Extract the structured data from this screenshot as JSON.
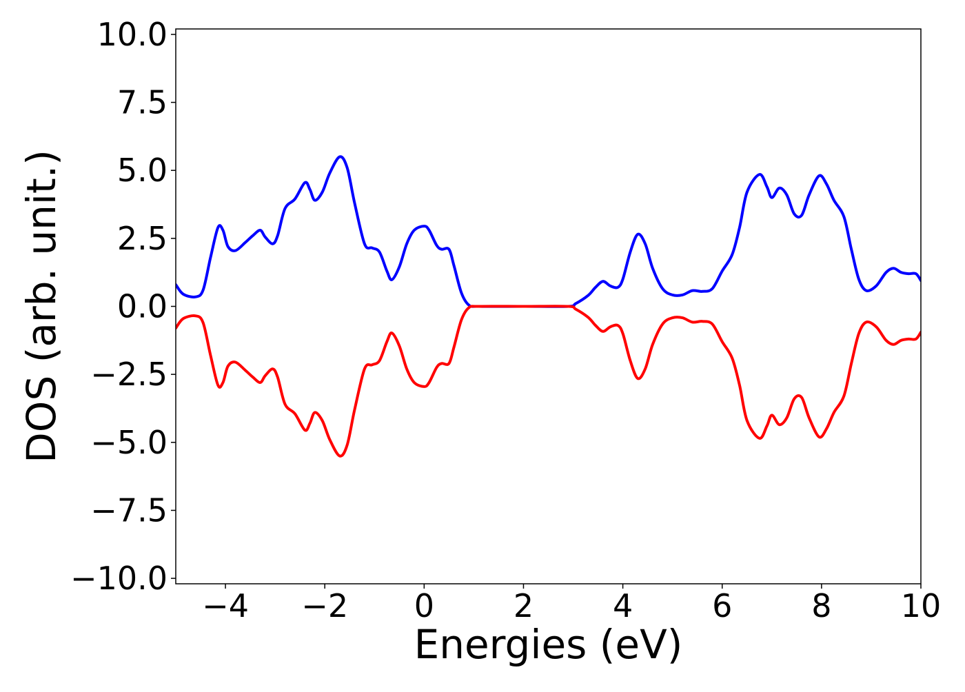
{
  "chart_data": {
    "type": "line",
    "xlabel": "Energies (eV)",
    "ylabel": "DOS (arb. unit.)",
    "xlim": [
      -5,
      10
    ],
    "ylim": [
      -10.2,
      10.2
    ],
    "xticks": [
      -4,
      -2,
      0,
      2,
      4,
      6,
      8,
      10
    ],
    "xtick_labels": [
      "−4",
      "−2",
      "0",
      "2",
      "4",
      "6",
      "8",
      "10"
    ],
    "yticks": [
      10.0,
      7.5,
      5.0,
      2.5,
      0.0,
      -2.5,
      -5.0,
      -7.5,
      -10.0
    ],
    "ytick_labels": [
      "10.0",
      "7.5",
      "5.0",
      "2.5",
      "0.0",
      "−2.5",
      "−5.0",
      "−7.5",
      "−10.0"
    ],
    "grid": false,
    "legend": "none",
    "series": [
      {
        "color": "#0000ff",
        "points": [
          [
            -5.0,
            0.8
          ],
          [
            -4.85,
            0.45
          ],
          [
            -4.6,
            0.35
          ],
          [
            -4.45,
            0.6
          ],
          [
            -4.3,
            1.8
          ],
          [
            -4.15,
            2.9
          ],
          [
            -4.05,
            2.8
          ],
          [
            -3.95,
            2.2
          ],
          [
            -3.8,
            2.05
          ],
          [
            -3.6,
            2.35
          ],
          [
            -3.45,
            2.6
          ],
          [
            -3.3,
            2.8
          ],
          [
            -3.2,
            2.55
          ],
          [
            -3.05,
            2.3
          ],
          [
            -2.95,
            2.6
          ],
          [
            -2.8,
            3.6
          ],
          [
            -2.6,
            3.95
          ],
          [
            -2.4,
            4.55
          ],
          [
            -2.3,
            4.3
          ],
          [
            -2.2,
            3.9
          ],
          [
            -2.05,
            4.2
          ],
          [
            -1.9,
            4.9
          ],
          [
            -1.7,
            5.5
          ],
          [
            -1.55,
            5.1
          ],
          [
            -1.4,
            3.8
          ],
          [
            -1.2,
            2.3
          ],
          [
            -1.05,
            2.15
          ],
          [
            -0.9,
            2.0
          ],
          [
            -0.75,
            1.3
          ],
          [
            -0.65,
            0.98
          ],
          [
            -0.5,
            1.45
          ],
          [
            -0.35,
            2.3
          ],
          [
            -0.2,
            2.8
          ],
          [
            0.0,
            2.95
          ],
          [
            0.1,
            2.8
          ],
          [
            0.25,
            2.25
          ],
          [
            0.35,
            2.1
          ],
          [
            0.5,
            2.1
          ],
          [
            0.6,
            1.5
          ],
          [
            0.75,
            0.5
          ],
          [
            0.9,
            0.05
          ],
          [
            1.1,
            0.0
          ],
          [
            2.0,
            0.0
          ],
          [
            2.9,
            0.0
          ],
          [
            3.05,
            0.1
          ],
          [
            3.3,
            0.4
          ],
          [
            3.45,
            0.7
          ],
          [
            3.6,
            0.92
          ],
          [
            3.75,
            0.75
          ],
          [
            3.9,
            0.7
          ],
          [
            4.0,
            1.0
          ],
          [
            4.15,
            2.0
          ],
          [
            4.3,
            2.65
          ],
          [
            4.45,
            2.3
          ],
          [
            4.6,
            1.4
          ],
          [
            4.8,
            0.65
          ],
          [
            5.0,
            0.42
          ],
          [
            5.2,
            0.42
          ],
          [
            5.4,
            0.58
          ],
          [
            5.6,
            0.55
          ],
          [
            5.8,
            0.65
          ],
          [
            6.0,
            1.3
          ],
          [
            6.2,
            1.9
          ],
          [
            6.35,
            2.9
          ],
          [
            6.5,
            4.2
          ],
          [
            6.75,
            4.85
          ],
          [
            6.9,
            4.4
          ],
          [
            7.0,
            4.0
          ],
          [
            7.15,
            4.35
          ],
          [
            7.3,
            4.1
          ],
          [
            7.45,
            3.4
          ],
          [
            7.6,
            3.35
          ],
          [
            7.75,
            4.1
          ],
          [
            7.95,
            4.8
          ],
          [
            8.1,
            4.5
          ],
          [
            8.25,
            3.9
          ],
          [
            8.45,
            3.3
          ],
          [
            8.6,
            2.1
          ],
          [
            8.75,
            1.0
          ],
          [
            8.9,
            0.58
          ],
          [
            9.1,
            0.75
          ],
          [
            9.3,
            1.25
          ],
          [
            9.45,
            1.4
          ],
          [
            9.6,
            1.25
          ],
          [
            9.75,
            1.2
          ],
          [
            9.9,
            1.2
          ],
          [
            10.0,
            0.95
          ]
        ]
      },
      {
        "color": "#ff0000",
        "points": [
          [
            -5.0,
            -0.8
          ],
          [
            -4.85,
            -0.45
          ],
          [
            -4.6,
            -0.35
          ],
          [
            -4.45,
            -0.6
          ],
          [
            -4.3,
            -1.8
          ],
          [
            -4.15,
            -2.9
          ],
          [
            -4.05,
            -2.8
          ],
          [
            -3.95,
            -2.2
          ],
          [
            -3.8,
            -2.05
          ],
          [
            -3.6,
            -2.35
          ],
          [
            -3.45,
            -2.6
          ],
          [
            -3.3,
            -2.8
          ],
          [
            -3.2,
            -2.55
          ],
          [
            -3.05,
            -2.3
          ],
          [
            -2.95,
            -2.6
          ],
          [
            -2.8,
            -3.6
          ],
          [
            -2.6,
            -3.95
          ],
          [
            -2.4,
            -4.55
          ],
          [
            -2.3,
            -4.3
          ],
          [
            -2.2,
            -3.9
          ],
          [
            -2.05,
            -4.2
          ],
          [
            -1.9,
            -4.9
          ],
          [
            -1.7,
            -5.5
          ],
          [
            -1.55,
            -5.1
          ],
          [
            -1.4,
            -3.8
          ],
          [
            -1.2,
            -2.3
          ],
          [
            -1.05,
            -2.15
          ],
          [
            -0.9,
            -2.0
          ],
          [
            -0.75,
            -1.3
          ],
          [
            -0.65,
            -0.98
          ],
          [
            -0.5,
            -1.45
          ],
          [
            -0.35,
            -2.3
          ],
          [
            -0.2,
            -2.8
          ],
          [
            0.0,
            -2.95
          ],
          [
            0.1,
            -2.8
          ],
          [
            0.25,
            -2.25
          ],
          [
            0.35,
            -2.1
          ],
          [
            0.5,
            -2.1
          ],
          [
            0.6,
            -1.5
          ],
          [
            0.75,
            -0.5
          ],
          [
            0.9,
            -0.05
          ],
          [
            1.1,
            0.0
          ],
          [
            2.0,
            0.0
          ],
          [
            2.9,
            0.0
          ],
          [
            3.05,
            -0.1
          ],
          [
            3.3,
            -0.4
          ],
          [
            3.45,
            -0.7
          ],
          [
            3.6,
            -0.92
          ],
          [
            3.75,
            -0.75
          ],
          [
            3.9,
            -0.7
          ],
          [
            4.0,
            -1.0
          ],
          [
            4.15,
            -2.0
          ],
          [
            4.3,
            -2.65
          ],
          [
            4.45,
            -2.3
          ],
          [
            4.6,
            -1.4
          ],
          [
            4.8,
            -0.65
          ],
          [
            5.0,
            -0.42
          ],
          [
            5.2,
            -0.42
          ],
          [
            5.4,
            -0.58
          ],
          [
            5.6,
            -0.55
          ],
          [
            5.8,
            -0.65
          ],
          [
            6.0,
            -1.3
          ],
          [
            6.2,
            -1.9
          ],
          [
            6.35,
            -2.9
          ],
          [
            6.5,
            -4.2
          ],
          [
            6.75,
            -4.85
          ],
          [
            6.9,
            -4.4
          ],
          [
            7.0,
            -4.0
          ],
          [
            7.15,
            -4.35
          ],
          [
            7.3,
            -4.1
          ],
          [
            7.45,
            -3.4
          ],
          [
            7.6,
            -3.35
          ],
          [
            7.75,
            -4.1
          ],
          [
            7.95,
            -4.8
          ],
          [
            8.1,
            -4.5
          ],
          [
            8.25,
            -3.9
          ],
          [
            8.45,
            -3.3
          ],
          [
            8.6,
            -2.1
          ],
          [
            8.75,
            -1.0
          ],
          [
            8.9,
            -0.58
          ],
          [
            9.1,
            -0.75
          ],
          [
            9.3,
            -1.25
          ],
          [
            9.45,
            -1.4
          ],
          [
            9.6,
            -1.25
          ],
          [
            9.75,
            -1.2
          ],
          [
            9.9,
            -1.2
          ],
          [
            10.0,
            -0.95
          ]
        ]
      }
    ]
  }
}
